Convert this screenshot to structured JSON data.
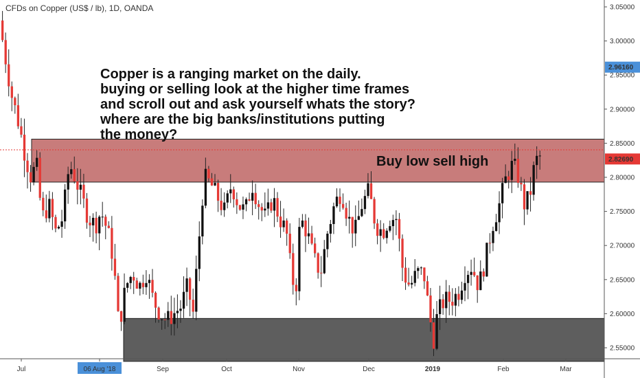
{
  "chart_data": {
    "type": "candlestick",
    "title": "CFDs on Copper (US$ / lb), 1D, OANDA",
    "y_ticks": [
      "3.05000",
      "3.00000",
      "2.95000",
      "2.90000",
      "2.85000",
      "2.80000",
      "2.75000",
      "2.70000",
      "2.65000",
      "2.60000",
      "2.55000"
    ],
    "y_values": [
      3.05,
      3.0,
      2.95,
      2.9,
      2.85,
      2.8,
      2.75,
      2.7,
      2.65,
      2.6,
      2.55
    ],
    "ylim": [
      2.513,
      3.065
    ],
    "x_ticks": [
      "Jul",
      "06 Aug '18",
      "Sep",
      "Oct",
      "Nov",
      "Dec",
      "2019",
      "Feb",
      "Mar"
    ],
    "highlighted_x_tick": "06 Aug '18",
    "price_labels": [
      {
        "text": "2.96160",
        "value": 2.9616,
        "color": "#4a90d9"
      },
      {
        "text": "2.82690",
        "value": 2.8269,
        "color": "#e53935"
      }
    ],
    "zones": [
      {
        "name": "resistance",
        "from": 2.793,
        "to": 2.856,
        "color": "#b5504f"
      },
      {
        "name": "support",
        "from": 2.53,
        "to": 2.593,
        "color": "#555555"
      }
    ],
    "annotations": [
      {
        "text": "Copper is a ranging market on the daily.\nbuying or selling look at the higher time frames\nand scroll out and ask yourself whats the story?\nwhere are the big banks/institutions putting\nthe money?"
      },
      {
        "text": "Buy low sell high"
      }
    ],
    "colors": {
      "up": "#111111",
      "down": "#e53935",
      "wick": "#222222"
    }
  }
}
